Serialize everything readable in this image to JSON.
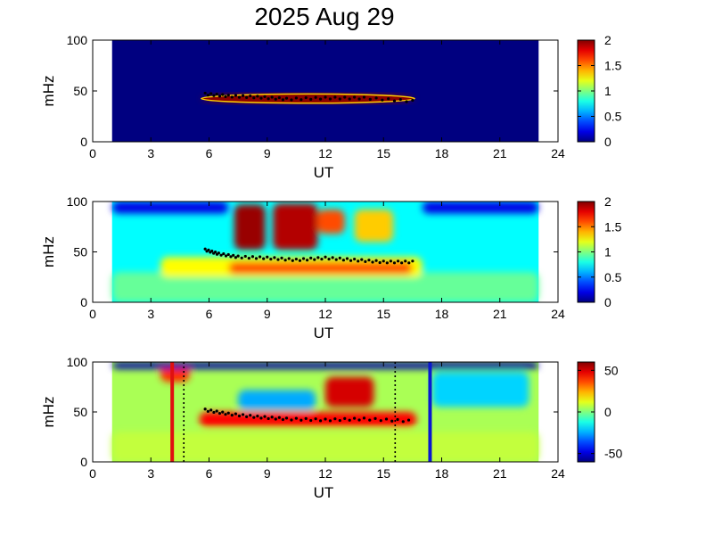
{
  "title": "2025 Aug 29",
  "chart_data": [
    {
      "type": "heatmap",
      "xlabel": "UT",
      "ylabel": "mHz",
      "xlim": [
        0,
        24
      ],
      "ylim": [
        0,
        100
      ],
      "xticks": [
        "0",
        "3",
        "6",
        "9",
        "12",
        "15",
        "18",
        "21",
        "24"
      ],
      "yticks": [
        "0",
        "50",
        "100"
      ],
      "data_range_x": [
        1,
        23
      ],
      "colorbar": {
        "min": 0,
        "max": 2,
        "ticks": [
          "0",
          "0.5",
          "1",
          "1.5",
          "2"
        ]
      },
      "background_value": 0,
      "patches": [
        {
          "x0": 5.6,
          "x1": 16.6,
          "y0": 38,
          "y1": 47,
          "value": 2,
          "shape": "band"
        }
      ],
      "trace": {
        "x": [
          5.8,
          7.0,
          8.5,
          10.0,
          12.0,
          14.0,
          16.5
        ],
        "y": [
          47,
          45,
          44,
          42,
          43,
          43,
          40
        ]
      }
    },
    {
      "type": "heatmap",
      "xlabel": "UT",
      "ylabel": "mHz",
      "xlim": [
        0,
        24
      ],
      "ylim": [
        0,
        100
      ],
      "xticks": [
        "0",
        "3",
        "6",
        "9",
        "12",
        "15",
        "18",
        "21",
        "24"
      ],
      "yticks": [
        "0",
        "50",
        "100"
      ],
      "data_range_x": [
        1,
        23
      ],
      "colorbar": {
        "min": 0,
        "max": 2,
        "ticks": [
          "0",
          "0.5",
          "1",
          "1.5",
          "2"
        ]
      },
      "background_value": 0.75,
      "patches": [
        {
          "x0": 1.0,
          "x1": 23.0,
          "y0": 0,
          "y1": 30,
          "value": 0.95
        },
        {
          "x0": 3.5,
          "x1": 17.0,
          "y0": 25,
          "y1": 45,
          "value": 1.25
        },
        {
          "x0": 7.3,
          "x1": 8.9,
          "y0": 52,
          "y1": 97,
          "value": 1.95
        },
        {
          "x0": 9.3,
          "x1": 11.6,
          "y0": 52,
          "y1": 98,
          "value": 1.9
        },
        {
          "x0": 11.6,
          "x1": 13.0,
          "y0": 68,
          "y1": 92,
          "value": 1.6
        },
        {
          "x0": 13.5,
          "x1": 15.5,
          "y0": 60,
          "y1": 92,
          "value": 1.35
        },
        {
          "x0": 7.0,
          "x1": 16.5,
          "y0": 28,
          "y1": 40,
          "value": 1.6
        },
        {
          "x0": 1.0,
          "x1": 7.0,
          "y0": 88,
          "y1": 100,
          "value": 0.2
        },
        {
          "x0": 17.0,
          "x1": 23.0,
          "y0": 88,
          "y1": 100,
          "value": 0.2
        }
      ],
      "trace": {
        "x": [
          5.8,
          6.5,
          7.5,
          9.0,
          10.5,
          12.0,
          13.5,
          15.0,
          16.5
        ],
        "y": [
          52,
          48,
          45,
          44,
          42,
          44,
          42,
          40,
          40
        ]
      }
    },
    {
      "type": "heatmap",
      "xlabel": "UT",
      "ylabel": "mHz",
      "xlim": [
        0,
        24
      ],
      "ylim": [
        0,
        100
      ],
      "xticks": [
        "0",
        "3",
        "6",
        "9",
        "12",
        "15",
        "18",
        "21",
        "24"
      ],
      "yticks": [
        "0",
        "50",
        "100"
      ],
      "data_range_x": [
        1,
        23
      ],
      "colorbar": {
        "min": -60,
        "max": 60,
        "ticks": [
          "50",
          "0",
          "-50"
        ],
        "tick_values": [
          50,
          0,
          -50
        ]
      },
      "background_value": 5,
      "patches": [
        {
          "x0": 1.0,
          "x1": 23.0,
          "y0": 0,
          "y1": 30,
          "value": 8
        },
        {
          "x0": 5.5,
          "x1": 16.7,
          "y0": 35,
          "y1": 50,
          "value": 45
        },
        {
          "x0": 7.5,
          "x1": 11.5,
          "y0": 52,
          "y1": 72,
          "value": -25
        },
        {
          "x0": 12.0,
          "x1": 14.5,
          "y0": 55,
          "y1": 85,
          "value": 50
        },
        {
          "x0": 3.5,
          "x1": 5.0,
          "y0": 80,
          "y1": 98,
          "value": 40
        },
        {
          "x0": 17.5,
          "x1": 22.5,
          "y0": 55,
          "y1": 90,
          "value": -20
        },
        {
          "x0": 1.0,
          "x1": 23.0,
          "y0": 93,
          "y1": 100,
          "value": -55
        }
      ],
      "trace": {
        "x": [
          5.8,
          7.0,
          8.5,
          10.0,
          12.0,
          14.0,
          16.3
        ],
        "y": [
          52,
          48,
          45,
          43,
          42,
          43,
          41
        ]
      },
      "markers": [
        {
          "x": 4.1,
          "color": "#e01010",
          "style": "solid"
        },
        {
          "x": 4.7,
          "color": "#000000",
          "style": "dotted"
        },
        {
          "x": 15.6,
          "color": "#000000",
          "style": "dotted"
        },
        {
          "x": 17.4,
          "color": "#0a18d0",
          "style": "solid"
        }
      ]
    }
  ]
}
